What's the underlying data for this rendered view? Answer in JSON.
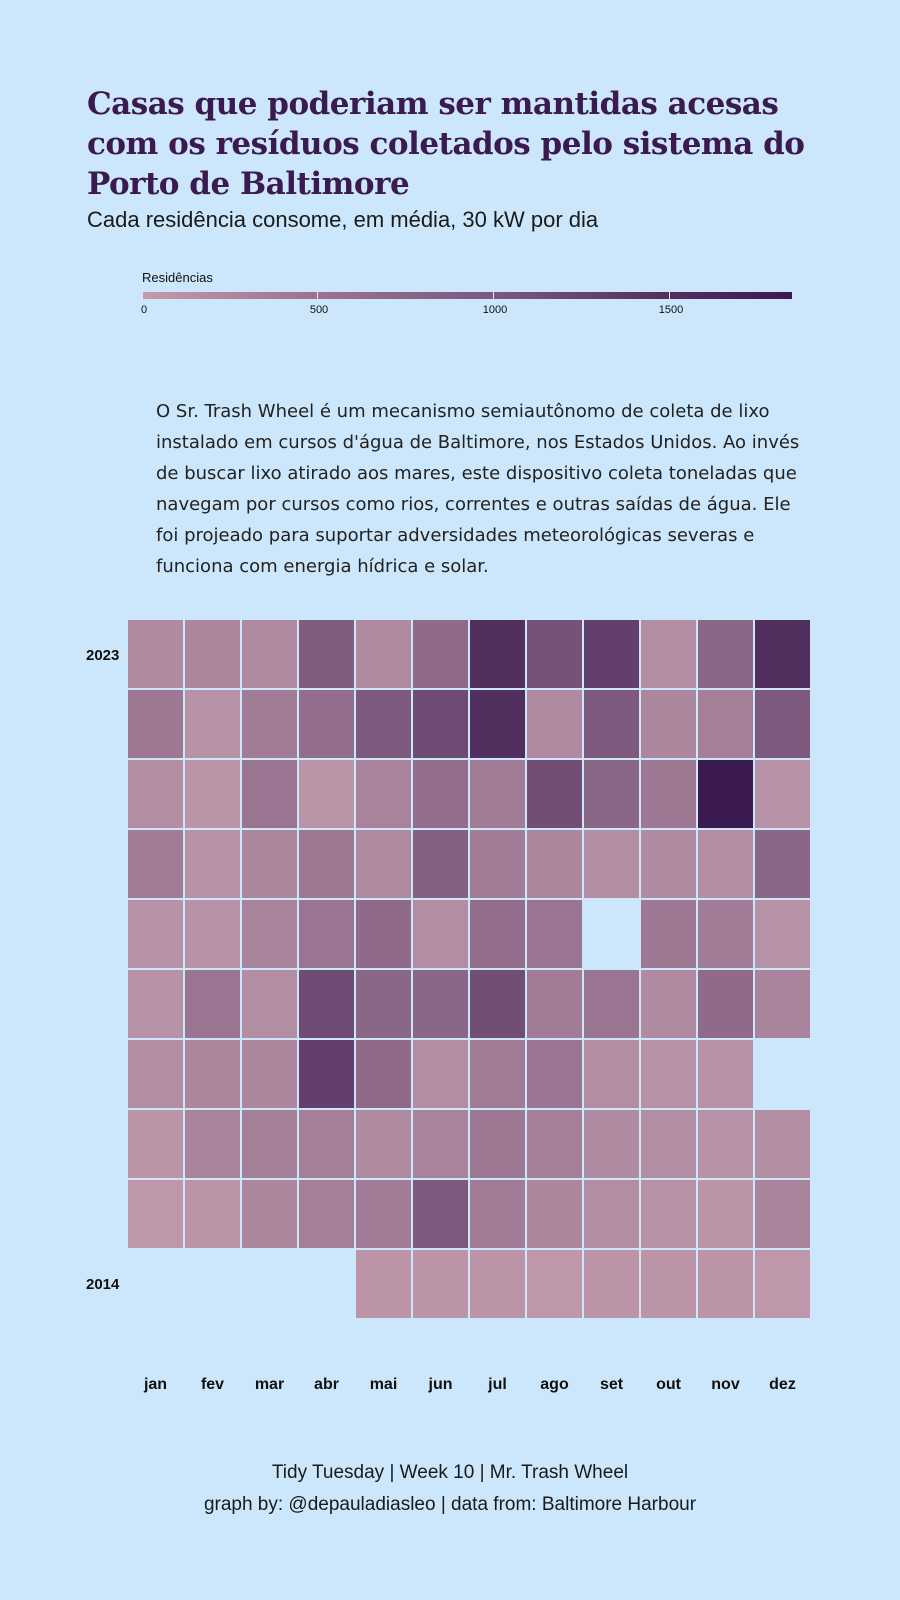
{
  "title": "Casas que poderiam ser mantidas acesas com os resíduos coletados pelo sistema do Porto de Baltimore",
  "subtitle": "Cada residência consome, em média, 30 kW por dia",
  "legend": {
    "title": "Residências",
    "ticks": [
      "0",
      "500",
      "1000",
      "1500"
    ],
    "tick_values": [
      0,
      500,
      1000,
      1500
    ],
    "max": 1850,
    "color_low": "#c29bac",
    "color_high": "#3b1a50"
  },
  "description": "O Sr. Trash Wheel é um mecanismo semiautônomo de coleta de lixo instalado em cursos d'água de Baltimore, nos Estados Unidos. Ao invés de buscar lixo atirado aos mares, este dispositivo coleta toneladas que navegam por cursos como rios, correntes e outras saídas de água. Ele foi projeado para suportar adversidades meteorológicas severas e funciona com energia hídrica e solar.",
  "chart_data": {
    "type": "heatmap",
    "x_categories": [
      "jan",
      "fev",
      "mar",
      "abr",
      "mai",
      "jun",
      "jul",
      "ago",
      "set",
      "out",
      "nov",
      "dez"
    ],
    "y_categories": [
      "2023",
      "2022",
      "2021",
      "2020",
      "2019",
      "2018",
      "2017",
      "2016",
      "2015",
      "2014"
    ],
    "y_labels_shown": [
      "2023",
      "2014"
    ],
    "legend_title": "Residências",
    "value_range": [
      0,
      1850
    ],
    "values": [
      [
        250,
        300,
        250,
        900,
        250,
        700,
        1550,
        1050,
        1300,
        200,
        750,
        1550
      ],
      [
        500,
        150,
        450,
        650,
        950,
        1150,
        1550,
        250,
        950,
        300,
        400,
        950
      ],
      [
        200,
        100,
        550,
        100,
        350,
        650,
        450,
        1100,
        750,
        500,
        1850,
        150
      ],
      [
        450,
        150,
        300,
        500,
        250,
        850,
        450,
        300,
        200,
        250,
        200,
        750
      ],
      [
        150,
        150,
        350,
        550,
        700,
        200,
        650,
        550,
        null,
        500,
        450,
        150
      ],
      [
        150,
        550,
        200,
        1150,
        750,
        750,
        1100,
        450,
        550,
        250,
        700,
        350
      ],
      [
        200,
        300,
        300,
        1300,
        700,
        200,
        450,
        550,
        200,
        150,
        150,
        null
      ],
      [
        100,
        350,
        400,
        400,
        250,
        350,
        500,
        400,
        250,
        200,
        150,
        200
      ],
      [
        50,
        100,
        300,
        400,
        450,
        950,
        450,
        300,
        200,
        150,
        100,
        350
      ],
      [
        null,
        null,
        null,
        null,
        100,
        100,
        100,
        50,
        100,
        100,
        100,
        50
      ]
    ]
  },
  "captions": {
    "line1": "Tidy Tuesday | Week 10 | Mr. Trash Wheel",
    "line2": "graph by: @depauladiasleo | data from: Baltimore Harbour"
  }
}
